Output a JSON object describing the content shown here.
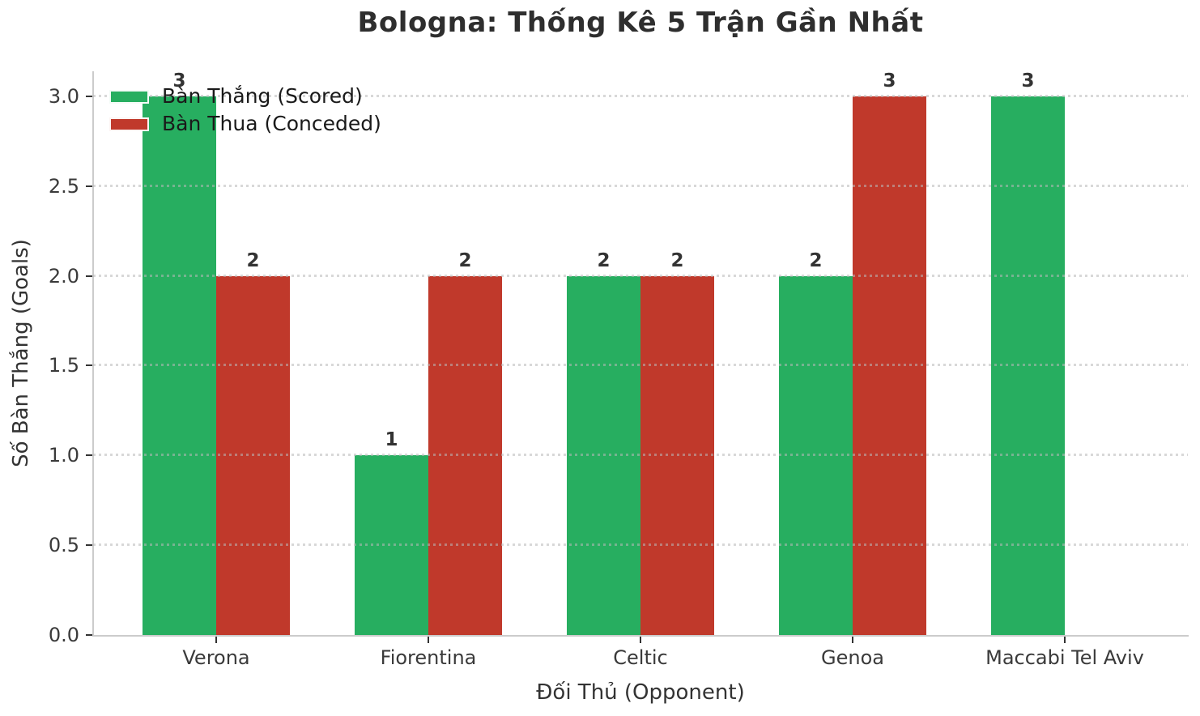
{
  "chart_data": {
    "type": "bar",
    "title": "Bologna: Thống Kê 5 Trận Gần Nhất",
    "xlabel": "Đối Thủ (Opponent)",
    "ylabel": "Số Bàn Thắng (Goals)",
    "categories": [
      "Verona",
      "Fiorentina",
      "Celtic",
      "Genoa",
      "Maccabi Tel Aviv"
    ],
    "series": [
      {
        "name": "Bàn Thắng (Scored)",
        "color": "#27ae60",
        "values": [
          3,
          1,
          2,
          2,
          3
        ]
      },
      {
        "name": "Bàn Thua (Conceded)",
        "color": "#c0392b",
        "values": [
          2,
          2,
          2,
          3,
          0
        ]
      }
    ],
    "ylim": [
      0,
      3.14
    ],
    "yticks": [
      0.0,
      0.5,
      1.0,
      1.5,
      2.0,
      2.5,
      3.0
    ],
    "ytick_labels": [
      "0.0",
      "0.5",
      "1.0",
      "1.5",
      "2.0",
      "2.5",
      "3.0"
    ],
    "grid": true,
    "grid_style": "dotted",
    "legend_position": "upper-left",
    "bar_value_labels": true,
    "value_labels_shown": [
      "3",
      "2",
      "1",
      "2",
      "2",
      "2",
      "2",
      "3",
      "3"
    ]
  },
  "colors": {
    "background": "#ffffff",
    "title_text": "#2e2e2e",
    "tick_text": "#3a3a3a",
    "axis_label_text": "#333333",
    "legend_text": "#1a1a1a",
    "spine": "#cccccc",
    "tick_mark": "#333333",
    "gridline": "#e1e1e1",
    "scored_green": "#27ae60",
    "conceded_red": "#c0392b"
  }
}
